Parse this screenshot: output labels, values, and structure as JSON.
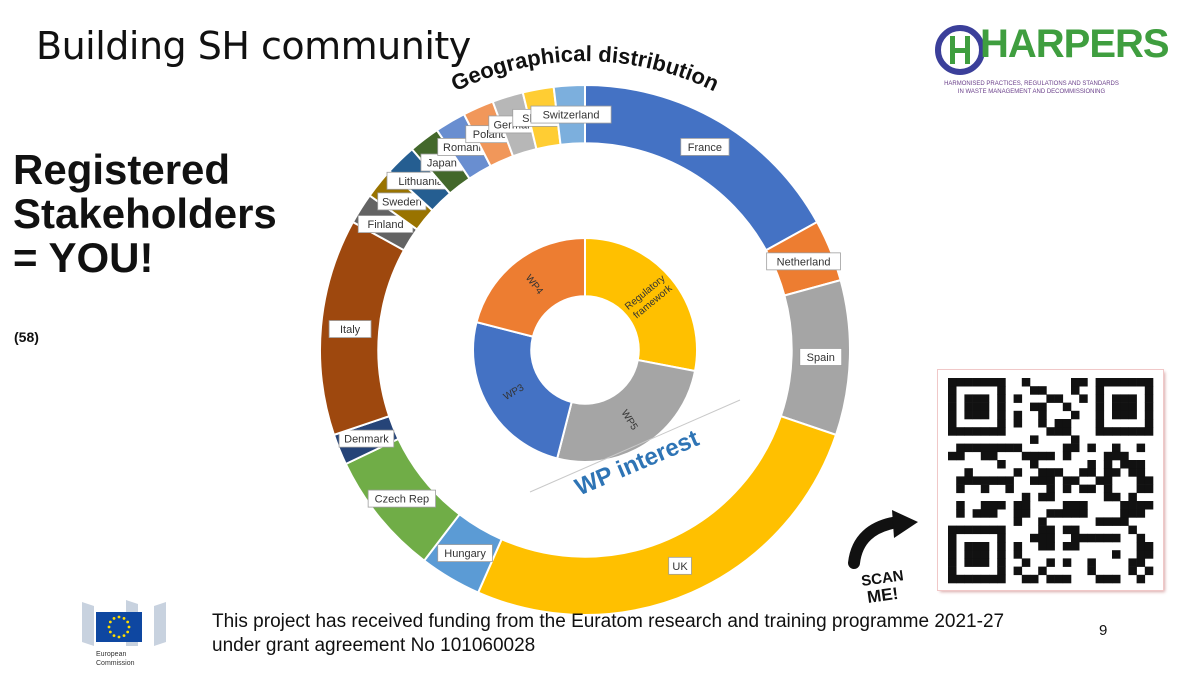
{
  "slide": {
    "title": "Building SH community",
    "heading_lines": [
      "Registered",
      "Stakeholders",
      "= YOU!"
    ],
    "count": "(58)",
    "footer_lines": [
      "This project has received funding from the Euratom research and training programme 2021-27",
      "under grant agreement No 101060028"
    ],
    "page_number": "9"
  },
  "logo": {
    "name": "HARPERS",
    "tagline_lines": [
      "HARMONISED PRACTICES, REGULATIONS AND STANDARDS",
      "IN WASTE MANAGEMENT AND DECOMMISSIONING"
    ]
  },
  "eu_logo": {
    "lines": [
      "European",
      "Commission"
    ]
  },
  "qr": {
    "icon": "qr-code-icon"
  },
  "scan_me": {
    "lines": [
      "SCAN",
      "ME!"
    ],
    "icon": "curved-arrow-icon"
  },
  "chart_data": [
    {
      "type": "pie",
      "title": "Geographical distribution",
      "hole": 0.78,
      "slices": [
        {
          "label": "France",
          "value": 9,
          "color": "#4472c4"
        },
        {
          "label": "Netherland",
          "value": 2,
          "color": "#ed7d31"
        },
        {
          "label": "Spain",
          "value": 5,
          "color": "#a5a5a5"
        },
        {
          "label": "UK",
          "value": 14,
          "color": "#ffc000"
        },
        {
          "label": "Hungary",
          "value": 2,
          "color": "#5b9bd5"
        },
        {
          "label": "Czech Rep",
          "value": 4,
          "color": "#70ad47"
        },
        {
          "label": "Denmark",
          "value": 1,
          "color": "#264478"
        },
        {
          "label": "Italy",
          "value": 7,
          "color": "#9e480e"
        },
        {
          "label": "Finland",
          "value": 1,
          "color": "#636363"
        },
        {
          "label": "Sweden",
          "value": 1,
          "color": "#997300"
        },
        {
          "label": "Lithuania",
          "value": 1,
          "color": "#255e91"
        },
        {
          "label": "Japan",
          "value": 1,
          "color": "#43682b"
        },
        {
          "label": "Romania",
          "value": 1,
          "color": "#698ed0"
        },
        {
          "label": "Poland",
          "value": 1,
          "color": "#f1975a"
        },
        {
          "label": "Germany",
          "value": 1,
          "color": "#b7b7b7"
        },
        {
          "label": "Slovenia",
          "value": 1,
          "color": "#ffcd33"
        },
        {
          "label": "Switzerland",
          "value": 1,
          "color": "#7cafdd"
        }
      ]
    },
    {
      "type": "pie",
      "title": "WP interest",
      "hole": 0.48,
      "slices": [
        {
          "label": "Regulatory framework",
          "value": 28,
          "color": "#ffc000"
        },
        {
          "label": "WP5",
          "value": 26,
          "color": "#a5a5a5"
        },
        {
          "label": "WP3",
          "value": 25,
          "color": "#4472c4"
        },
        {
          "label": "WP4",
          "value": 21,
          "color": "#ed7d31"
        }
      ]
    }
  ]
}
